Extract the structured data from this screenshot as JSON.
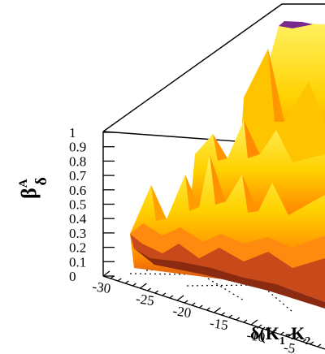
{
  "chart_data": {
    "type": "surface3d",
    "zlabel_main": "β",
    "zlabel_sup": "A",
    "zlabel_sub": "δ",
    "xlabel_main": "δ(K",
    "xlabel_sub1": "1",
    "xlabel_mid": "-K",
    "xlabel_sub2": "2",
    "zlim": [
      0,
      1
    ],
    "zticks": [
      "1",
      "0.9",
      "0.8",
      "0.7",
      "0.6",
      "0.5",
      "0.4",
      "0.3",
      "0.2",
      "0.1",
      "0"
    ],
    "xticks_visible": [
      "-30",
      "-25",
      "-20",
      "-15",
      "-10",
      "-5"
    ],
    "grid": false,
    "colormap": [
      "#7a2a8c",
      "#c43c1e",
      "#ff8800",
      "#ffd200",
      "#fff060"
    ],
    "peaks": [
      {
        "x": -27,
        "z": 0.52
      },
      {
        "x": -22,
        "z": 0.6
      },
      {
        "x": -18,
        "z": 0.7
      },
      {
        "x": -14,
        "z": 0.8
      },
      {
        "x": -9,
        "z": 0.85
      },
      {
        "x": -5,
        "z": 1.0
      }
    ]
  }
}
